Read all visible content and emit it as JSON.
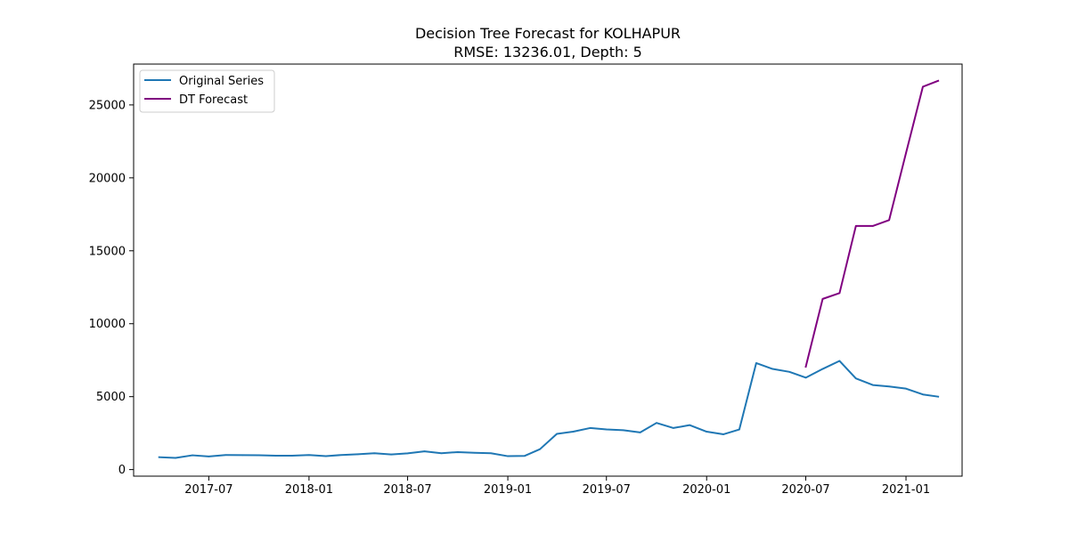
{
  "chart_data": {
    "type": "line",
    "title": "Decision Tree Forecast for KOLHAPUR",
    "subtitle": "RMSE: 13236.01, Depth: 5",
    "xlabel": "",
    "ylabel": "",
    "legend_position": "upper-left",
    "grid": false,
    "x_range": [
      "2017-02-13",
      "2021-04-14"
    ],
    "y_range": [
      -450,
      27800
    ],
    "x_ticks": [
      "2017-07",
      "2018-01",
      "2018-07",
      "2019-01",
      "2019-07",
      "2020-01",
      "2020-07",
      "2021-01"
    ],
    "y_ticks": [
      0,
      5000,
      10000,
      15000,
      20000,
      25000
    ],
    "series": [
      {
        "name": "Original Series",
        "color": "#1f77b4",
        "x": [
          "2017-04",
          "2017-05",
          "2017-06",
          "2017-07",
          "2017-08",
          "2017-09",
          "2017-10",
          "2017-11",
          "2017-12",
          "2018-01",
          "2018-02",
          "2018-03",
          "2018-04",
          "2018-05",
          "2018-06",
          "2018-07",
          "2018-08",
          "2018-09",
          "2018-10",
          "2018-11",
          "2018-12",
          "2019-01",
          "2019-02",
          "2019-03",
          "2019-04",
          "2019-05",
          "2019-06",
          "2019-07",
          "2019-08",
          "2019-09",
          "2019-10",
          "2019-11",
          "2019-12",
          "2020-01",
          "2020-02",
          "2020-03",
          "2020-04",
          "2020-05",
          "2020-06",
          "2020-07",
          "2020-08",
          "2020-09",
          "2020-10",
          "2020-11",
          "2020-12",
          "2021-01",
          "2021-02",
          "2021-03"
        ],
        "y": [
          850,
          800,
          980,
          900,
          1000,
          990,
          980,
          950,
          950,
          1000,
          920,
          1000,
          1050,
          1120,
          1040,
          1110,
          1250,
          1120,
          1200,
          1150,
          1120,
          920,
          940,
          1400,
          2450,
          2600,
          2850,
          2750,
          2700,
          2550,
          3200,
          2850,
          3050,
          2600,
          2420,
          2750,
          7300,
          6900,
          6700,
          6300,
          6900,
          7450,
          6250,
          5800,
          5700,
          5550,
          5150,
          5000
        ]
      },
      {
        "name": "DT Forecast",
        "color": "#800080",
        "x": [
          "2020-07",
          "2020-08",
          "2020-09",
          "2020-10",
          "2020-11",
          "2020-12",
          "2021-01",
          "2021-02",
          "2021-03"
        ],
        "y": [
          7050,
          11700,
          12100,
          16700,
          16700,
          17100,
          21700,
          26250,
          26650
        ]
      }
    ]
  }
}
